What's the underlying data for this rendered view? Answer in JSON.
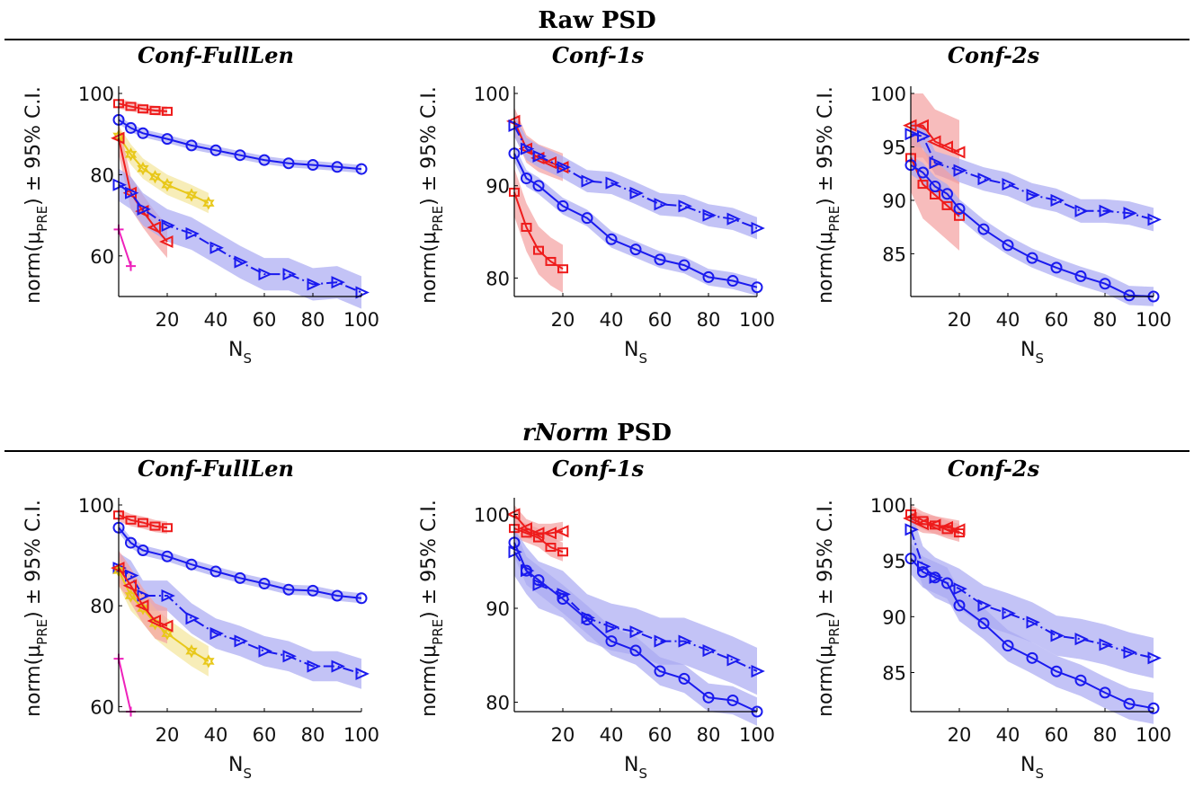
{
  "figure": {
    "sections": [
      {
        "title_main": "Raw",
        "title_italic": "",
        "title_suffix": "PSD"
      },
      {
        "title_main": "",
        "title_italic": "rNorm",
        "title_suffix": "PSD"
      }
    ]
  },
  "colors": {
    "red": "#ee1c1c",
    "blue": "#1a1aee",
    "yellow": "#e8c81a",
    "magenta": "#ee22bb",
    "red_band": "#f4a0a0",
    "blue_band": "#a9a9f2",
    "yellow_band": "#f3e69a"
  },
  "chart_data": [
    {
      "type": "line",
      "title": "Conf-FullLen",
      "xlabel": "N",
      "xlabel_sub": "S",
      "ylabel": "norm(μ",
      "ylabel_sub": "PRE",
      "ylabel_tail": ") ± 95% C.I.",
      "xlim": [
        0,
        100
      ],
      "ylim": [
        50,
        100
      ],
      "xticks": [
        20,
        40,
        60,
        80,
        100
      ],
      "yticks": [
        60,
        80,
        100
      ],
      "series": [
        {
          "color": "red",
          "marker": "square",
          "dashed": false,
          "band": 1.2,
          "x": [
            0,
            5,
            10,
            15,
            20
          ],
          "y": [
            97.5,
            96.8,
            96.2,
            95.8,
            95.6
          ]
        },
        {
          "color": "blue",
          "marker": "circle",
          "dashed": false,
          "band": 1.0,
          "x": [
            0,
            5,
            10,
            20,
            30,
            40,
            50,
            60,
            70,
            80,
            90,
            100
          ],
          "y": [
            93.5,
            91.5,
            90.2,
            88.8,
            87.2,
            86.0,
            84.8,
            83.6,
            82.8,
            82.4,
            81.9,
            81.4
          ]
        },
        {
          "color": "yellow",
          "marker": "star",
          "dashed": false,
          "band": 2.5,
          "x": [
            0,
            5,
            10,
            15,
            20,
            30,
            37
          ],
          "y": [
            89.5,
            85.0,
            81.5,
            79.5,
            77.5,
            75.0,
            73.0
          ]
        },
        {
          "color": "red",
          "marker": "triangle-left",
          "dashed": false,
          "band": 4.0,
          "x": [
            0,
            5,
            10,
            15,
            20
          ],
          "y": [
            89.0,
            75.5,
            71.0,
            67.0,
            63.5
          ]
        },
        {
          "color": "blue",
          "marker": "triangle-right",
          "dashed": true,
          "band": 4.0,
          "x": [
            0,
            5,
            10,
            20,
            30,
            40,
            50,
            60,
            70,
            80,
            90,
            100
          ],
          "y": [
            77.5,
            75.5,
            71.5,
            67.5,
            65.5,
            62.0,
            58.5,
            55.5,
            55.5,
            53.0,
            53.5,
            51.0
          ]
        },
        {
          "color": "magenta",
          "marker": "plus",
          "dashed": false,
          "band": 0,
          "x": [
            0,
            5
          ],
          "y": [
            66.5,
            57.5
          ]
        }
      ]
    },
    {
      "type": "line",
      "title": "Conf-1s",
      "xlabel": "N",
      "xlabel_sub": "S",
      "ylabel": "norm(μ",
      "ylabel_sub": "PRE",
      "ylabel_tail": ") ± 95% C.I.",
      "xlim": [
        0,
        100
      ],
      "ylim": [
        78,
        100
      ],
      "xticks": [
        20,
        40,
        60,
        80,
        100
      ],
      "yticks": [
        80,
        90,
        100
      ],
      "series": [
        {
          "color": "red",
          "marker": "triangle-left",
          "dashed": false,
          "band": 1.5,
          "x": [
            0,
            5,
            10,
            15,
            20
          ],
          "y": [
            97.0,
            94.0,
            93.0,
            92.5,
            92.0
          ]
        },
        {
          "color": "blue",
          "marker": "triangle-right",
          "dashed": true,
          "band": 1.2,
          "x": [
            0,
            5,
            10,
            20,
            30,
            40,
            50,
            60,
            70,
            80,
            90,
            100
          ],
          "y": [
            96.5,
            94.0,
            93.2,
            92.0,
            90.5,
            90.3,
            89.2,
            88.0,
            87.8,
            86.8,
            86.4,
            85.4
          ]
        },
        {
          "color": "blue",
          "marker": "circle",
          "dashed": false,
          "band": 0.9,
          "x": [
            0,
            5,
            10,
            20,
            30,
            40,
            50,
            60,
            70,
            80,
            90,
            100
          ],
          "y": [
            93.5,
            90.8,
            90.0,
            87.8,
            86.5,
            84.2,
            83.1,
            82.0,
            81.4,
            80.1,
            79.7,
            79.0
          ]
        },
        {
          "color": "red",
          "marker": "square",
          "dashed": false,
          "band": 2.6,
          "x": [
            0,
            5,
            10,
            15,
            20
          ],
          "y": [
            89.3,
            85.5,
            83.0,
            81.8,
            81.0
          ]
        }
      ]
    },
    {
      "type": "line",
      "title": "Conf-2s",
      "xlabel": "N",
      "xlabel_sub": "S",
      "ylabel": "norm(μ",
      "ylabel_sub": "PRE",
      "ylabel_tail": ") ± 95% C.I.",
      "xlim": [
        0,
        100
      ],
      "ylim": [
        81,
        100
      ],
      "xticks": [
        20,
        40,
        60,
        80,
        100
      ],
      "yticks": [
        85,
        90,
        95,
        100
      ],
      "series": [
        {
          "color": "red",
          "marker": "triangle-left",
          "dashed": false,
          "band": 3.0,
          "x": [
            0,
            5,
            10,
            15,
            20
          ],
          "y": [
            97.0,
            97.0,
            95.5,
            95.0,
            94.5
          ]
        },
        {
          "color": "blue",
          "marker": "triangle-right",
          "dashed": true,
          "band": 1.1,
          "x": [
            0,
            5,
            10,
            20,
            30,
            40,
            50,
            60,
            70,
            80,
            90,
            100
          ],
          "y": [
            96.2,
            96.0,
            93.5,
            92.8,
            92.0,
            91.5,
            90.5,
            90.0,
            89.0,
            89.0,
            88.8,
            88.2
          ]
        },
        {
          "color": "red",
          "marker": "square",
          "dashed": false,
          "band": 3.2,
          "x": [
            0,
            5,
            10,
            15,
            20
          ],
          "y": [
            94.0,
            91.5,
            90.5,
            89.5,
            88.5
          ]
        },
        {
          "color": "blue",
          "marker": "circle",
          "dashed": false,
          "band": 0.9,
          "x": [
            0,
            5,
            10,
            15,
            20,
            30,
            40,
            50,
            60,
            70,
            80,
            90,
            100
          ],
          "y": [
            93.3,
            92.6,
            91.3,
            90.6,
            89.2,
            87.3,
            85.8,
            84.6,
            83.7,
            82.9,
            82.2,
            81.1,
            81.0
          ]
        }
      ]
    },
    {
      "type": "line",
      "title": "Conf-FullLen",
      "xlabel": "N",
      "xlabel_sub": "S",
      "ylabel": "norm(μ",
      "ylabel_sub": "PRE",
      "ylabel_tail": ") ± 95% C.I.",
      "xlim": [
        0,
        100
      ],
      "ylim": [
        59,
        100
      ],
      "xticks": [
        20,
        40,
        60,
        80,
        100
      ],
      "yticks": [
        60,
        80,
        100
      ],
      "series": [
        {
          "color": "red",
          "marker": "square",
          "dashed": false,
          "band": 1.2,
          "x": [
            0,
            5,
            10,
            15,
            20
          ],
          "y": [
            98.0,
            97.0,
            96.5,
            95.8,
            95.5
          ]
        },
        {
          "color": "blue",
          "marker": "circle",
          "dashed": false,
          "band": 1.0,
          "x": [
            0,
            5,
            10,
            20,
            30,
            40,
            50,
            60,
            70,
            80,
            90,
            100
          ],
          "y": [
            95.5,
            92.5,
            91.0,
            89.8,
            88.2,
            86.8,
            85.5,
            84.4,
            83.2,
            83.0,
            82.0,
            81.5
          ]
        },
        {
          "color": "blue",
          "marker": "triangle-right",
          "dashed": true,
          "band": 3.0,
          "x": [
            0,
            5,
            10,
            20,
            30,
            40,
            50,
            60,
            70,
            80,
            90,
            100
          ],
          "y": [
            87.5,
            86.0,
            82.0,
            82.0,
            77.5,
            74.5,
            73.0,
            71.0,
            70.0,
            68.0,
            68.0,
            66.5
          ]
        },
        {
          "color": "yellow",
          "marker": "star",
          "dashed": false,
          "band": 3.0,
          "x": [
            0,
            5,
            10,
            15,
            20,
            30,
            37
          ],
          "y": [
            87.0,
            82.0,
            79.5,
            76.5,
            74.5,
            71.0,
            69.0
          ]
        },
        {
          "color": "red",
          "marker": "triangle-left",
          "dashed": false,
          "band": 3.5,
          "x": [
            0,
            5,
            10,
            15,
            20
          ],
          "y": [
            87.5,
            84.0,
            80.0,
            77.0,
            76.0
          ]
        },
        {
          "color": "magenta",
          "marker": "plus",
          "dashed": false,
          "band": 0,
          "x": [
            0,
            5
          ],
          "y": [
            69.5,
            59.0
          ]
        }
      ]
    },
    {
      "type": "line",
      "title": "Conf-1s",
      "xlabel": "N",
      "xlabel_sub": "S",
      "ylabel": "norm(μ",
      "ylabel_sub": "PRE",
      "ylabel_tail": ") ± 95% C.I.",
      "xlim": [
        0,
        100
      ],
      "ylim": [
        79,
        101
      ],
      "xticks": [
        20,
        40,
        60,
        80,
        100
      ],
      "yticks": [
        80,
        90,
        100
      ],
      "series": [
        {
          "color": "red",
          "marker": "triangle-left",
          "dashed": false,
          "band": 1.0,
          "x": [
            0,
            5,
            10,
            15,
            20
          ],
          "y": [
            100.0,
            98.5,
            98.0,
            98.0,
            98.2
          ]
        },
        {
          "color": "red",
          "marker": "square",
          "dashed": false,
          "band": 1.0,
          "x": [
            0,
            5,
            10,
            15,
            20
          ],
          "y": [
            98.5,
            98.0,
            97.5,
            96.5,
            96.0
          ]
        },
        {
          "color": "blue",
          "marker": "triangle-right",
          "dashed": true,
          "band": 2.5,
          "x": [
            0,
            5,
            10,
            20,
            30,
            40,
            50,
            60,
            70,
            80,
            90,
            100
          ],
          "y": [
            96.0,
            94.0,
            92.5,
            91.5,
            89.0,
            88.0,
            87.5,
            86.5,
            86.5,
            85.5,
            84.5,
            83.3
          ]
        },
        {
          "color": "blue",
          "marker": "circle",
          "dashed": false,
          "band": 1.5,
          "x": [
            0,
            5,
            10,
            20,
            30,
            40,
            50,
            60,
            70,
            80,
            90,
            100
          ],
          "y": [
            97.0,
            94.0,
            93.0,
            91.0,
            88.8,
            86.5,
            85.5,
            83.3,
            82.5,
            80.5,
            80.2,
            79.0
          ]
        }
      ]
    },
    {
      "type": "line",
      "title": "Conf-2s",
      "xlabel": "N",
      "xlabel_sub": "S",
      "ylabel": "norm(μ",
      "ylabel_sub": "PRE",
      "ylabel_tail": ") ± 95% C.I.",
      "xlim": [
        0,
        100
      ],
      "ylim": [
        81.5,
        100
      ],
      "xticks": [
        20,
        40,
        60,
        80,
        100
      ],
      "yticks": [
        85,
        90,
        95,
        100
      ],
      "series": [
        {
          "color": "red",
          "marker": "square",
          "dashed": false,
          "band": 0.8,
          "x": [
            0,
            5,
            10,
            15,
            20
          ],
          "y": [
            99.2,
            98.6,
            98.2,
            97.8,
            97.5
          ]
        },
        {
          "color": "red",
          "marker": "triangle-left",
          "dashed": false,
          "band": 0.8,
          "x": [
            0,
            5,
            10,
            15,
            20
          ],
          "y": [
            98.8,
            98.3,
            98.2,
            98.0,
            97.8
          ]
        },
        {
          "color": "blue",
          "marker": "triangle-right",
          "dashed": true,
          "band": 1.8,
          "x": [
            0,
            5,
            10,
            20,
            30,
            40,
            50,
            60,
            70,
            80,
            90,
            100
          ],
          "y": [
            97.8,
            94.5,
            93.5,
            92.5,
            91.0,
            90.3,
            89.5,
            88.3,
            88.0,
            87.5,
            86.8,
            86.3
          ]
        },
        {
          "color": "blue",
          "marker": "circle",
          "dashed": false,
          "band": 1.4,
          "x": [
            0,
            5,
            10,
            15,
            20,
            30,
            40,
            50,
            60,
            70,
            80,
            90,
            100
          ],
          "y": [
            95.2,
            94.0,
            93.5,
            93.0,
            91.0,
            89.4,
            87.4,
            86.3,
            85.1,
            84.3,
            83.2,
            82.2,
            81.8
          ]
        }
      ]
    }
  ]
}
